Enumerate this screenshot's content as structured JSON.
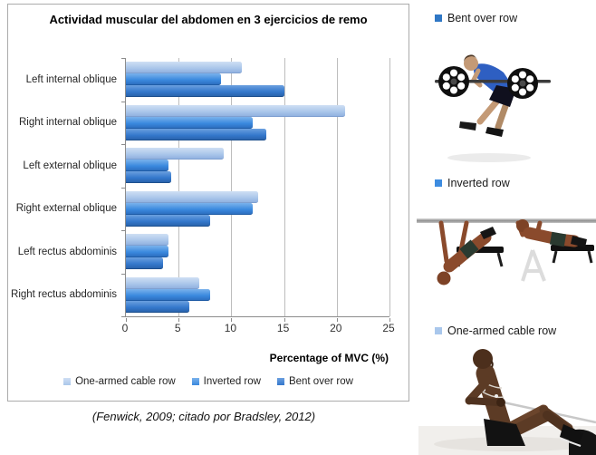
{
  "chart_data": {
    "type": "bar",
    "orientation": "horizontal",
    "title": "Actividad muscular del abdomen en 3 ejercicios de remo",
    "categories": [
      "Left internal oblique",
      "Right internal oblique",
      "Left external oblique",
      "Right external oblique",
      "Left rectus abdominis",
      "Right rectus abdominis"
    ],
    "series": [
      {
        "name": "One-armed cable row",
        "values": [
          11,
          20.8,
          9.3,
          12.5,
          4,
          7
        ],
        "colors": {
          "top": "#cfdff4",
          "mid": "#aac6ea",
          "bottom": "#92b2e0",
          "edge": "#7e9fd0"
        }
      },
      {
        "name": "Inverted row",
        "values": [
          9,
          12,
          4,
          12,
          4,
          8
        ],
        "colors": {
          "top": "#7ab2ec",
          "mid": "#3a89de",
          "bottom": "#2d6fc0",
          "edge": "#1f5ca6"
        }
      },
      {
        "name": "Bent over row",
        "values": [
          15,
          13.3,
          4.3,
          8,
          3.5,
          6
        ],
        "colors": {
          "top": "#6ba0df",
          "mid": "#3478cc",
          "bottom": "#2a64ad",
          "edge": "#1d4f8e"
        }
      }
    ],
    "xlabel": "Percentage of MVC (%)",
    "xlim": [
      0,
      25
    ],
    "xticks": [
      0,
      5,
      10,
      15,
      20,
      25
    ],
    "grid": "vertical gridlines",
    "legend_position": "bottom"
  },
  "exercises": [
    {
      "label": "Bent over row",
      "marker_color": "#2f77c5"
    },
    {
      "label": "Inverted row",
      "marker_color": "#3d8ce0"
    },
    {
      "label": "One-armed cable row",
      "marker_color": "#a9c7ec"
    }
  ],
  "caption": "(Fenwick, 2009; citado por Bradsley, 2012)"
}
